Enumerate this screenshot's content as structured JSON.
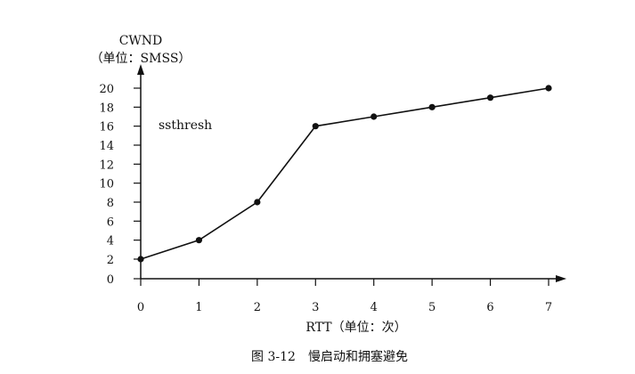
{
  "chart_data": {
    "type": "line",
    "caption": "图 3-12　慢启动和拥塞避免",
    "ylabel_line1": "CWND",
    "ylabel_line2": "（单位：SMSS）",
    "xlabel": "RTT（单位：次）",
    "annotation": "ssthresh",
    "x": [
      0,
      1,
      2,
      3,
      4,
      5,
      6,
      7
    ],
    "y": [
      2,
      4,
      8,
      16,
      17,
      18,
      19,
      20
    ],
    "xlim": [
      0,
      7
    ],
    "ylim": [
      0,
      20
    ],
    "xticks": [
      0,
      1,
      2,
      3,
      4,
      5,
      6,
      7
    ],
    "yticks": [
      0,
      2,
      4,
      6,
      8,
      10,
      12,
      14,
      16,
      18,
      20
    ],
    "grid": false,
    "color": "#111111"
  }
}
